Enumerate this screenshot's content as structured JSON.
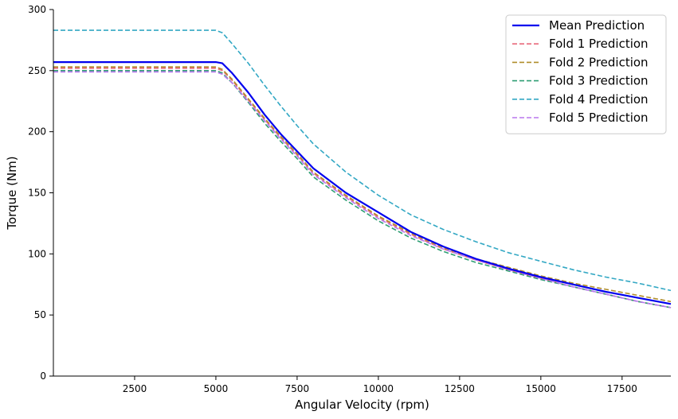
{
  "chart_data": {
    "type": "line",
    "title": "",
    "xlabel": "Angular Velocity (rpm)",
    "ylabel": "Torque (Nm)",
    "xlim": [
      0,
      19000
    ],
    "ylim": [
      0,
      300
    ],
    "x_ticks": [
      2500,
      5000,
      7500,
      10000,
      12500,
      15000,
      17500
    ],
    "y_ticks": [
      0,
      50,
      100,
      150,
      200,
      250,
      300
    ],
    "grid": false,
    "legend_position": "top-right",
    "x": [
      0,
      1000,
      2000,
      3000,
      4000,
      5000,
      5200,
      5500,
      6000,
      6500,
      7000,
      7500,
      8000,
      9000,
      10000,
      11000,
      12000,
      13000,
      14000,
      15000,
      16000,
      17000,
      18000,
      19000
    ],
    "series": [
      {
        "name": "Mean Prediction",
        "color": "#0000ee",
        "style": "solid",
        "values": [
          257,
          257,
          257,
          257,
          257,
          257,
          256,
          248,
          232,
          214,
          198,
          184,
          170,
          150,
          134,
          118,
          106,
          96,
          88,
          81,
          75,
          69,
          64,
          59
        ]
      },
      {
        "name": "Fold 1 Prediction",
        "color": "#e8697a",
        "style": "dashed",
        "values": [
          252,
          252,
          252,
          252,
          252,
          252,
          250,
          242,
          226,
          210,
          195,
          181,
          166,
          147,
          130,
          116,
          104,
          95,
          87,
          80,
          73,
          67,
          61,
          56
        ]
      },
      {
        "name": "Fold 2 Prediction",
        "color": "#b08d2a",
        "style": "dashed",
        "values": [
          253,
          253,
          253,
          253,
          253,
          253,
          251,
          243,
          227,
          211,
          196,
          182,
          167,
          148,
          131,
          117,
          105,
          96,
          89,
          82,
          76,
          71,
          66,
          61
        ]
      },
      {
        "name": "Fold 3 Prediction",
        "color": "#2e9e74",
        "style": "dashed",
        "values": [
          250,
          250,
          250,
          250,
          250,
          250,
          248,
          240,
          224,
          207,
          192,
          178,
          163,
          144,
          127,
          113,
          102,
          93,
          86,
          79,
          73,
          67,
          61,
          56
        ]
      },
      {
        "name": "Fold 4 Prediction",
        "color": "#33a8c4",
        "style": "dashed",
        "values": [
          283,
          283,
          283,
          283,
          283,
          283,
          281,
          272,
          256,
          238,
          221,
          205,
          190,
          167,
          148,
          132,
          120,
          110,
          101,
          94,
          87,
          81,
          76,
          70
        ]
      },
      {
        "name": "Fold 5 Prediction",
        "color": "#b877ee",
        "style": "dashed",
        "values": [
          249,
          249,
          249,
          249,
          249,
          249,
          247,
          240,
          225,
          209,
          194,
          180,
          165,
          146,
          129,
          115,
          104,
          95,
          87,
          80,
          73,
          67,
          61,
          56
        ]
      }
    ]
  }
}
